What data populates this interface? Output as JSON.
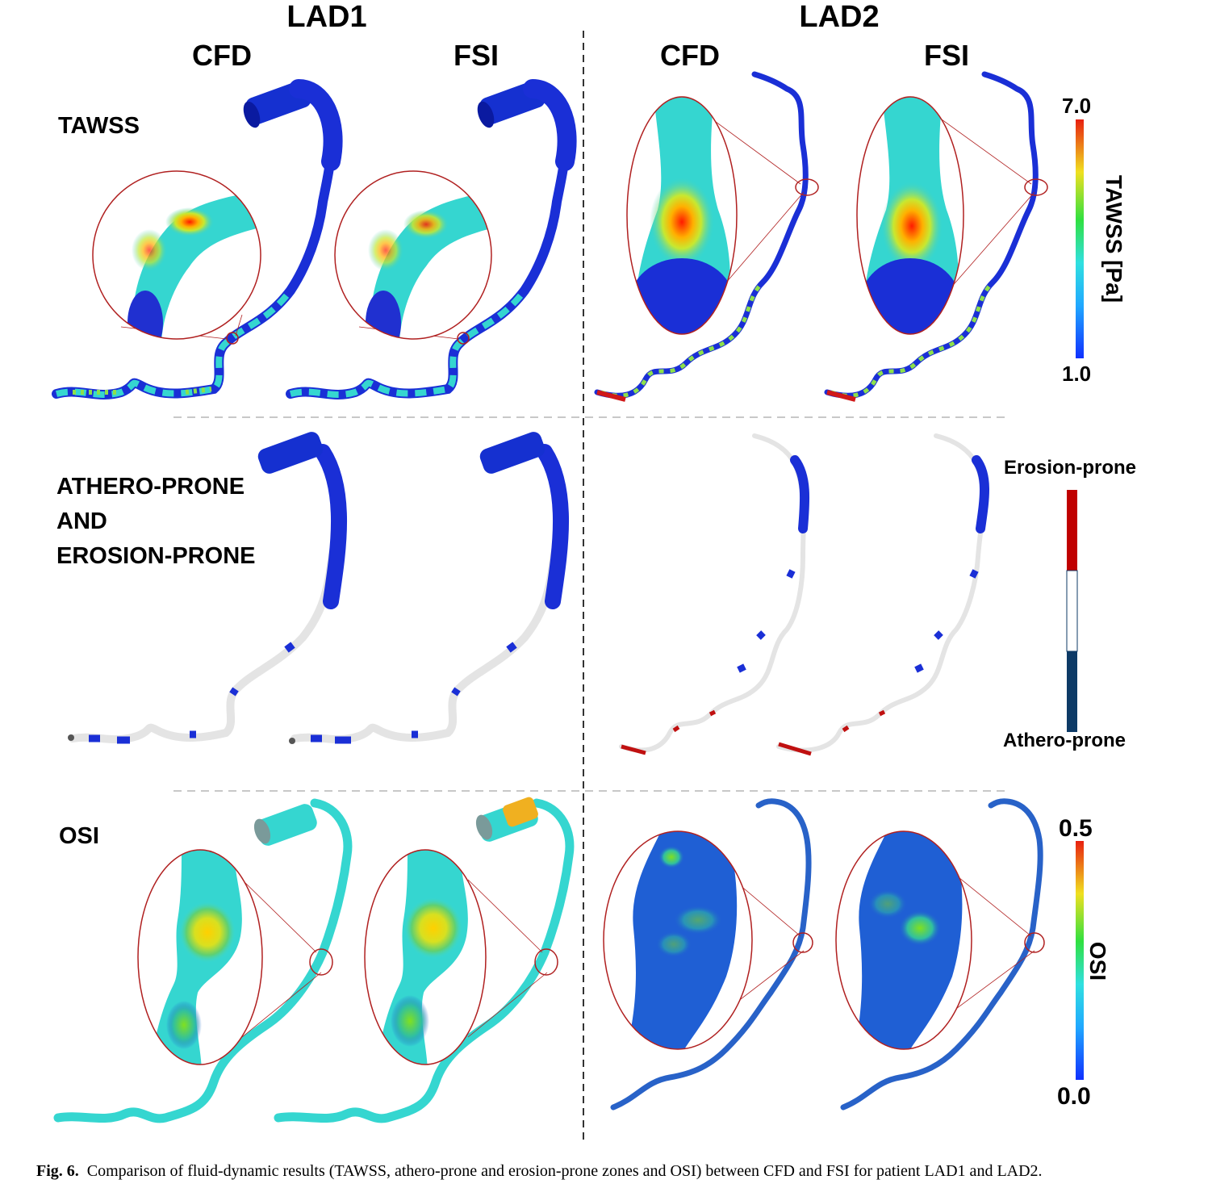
{
  "figure": {
    "patients": [
      {
        "label": "LAD1",
        "methods": [
          "CFD",
          "FSI"
        ]
      },
      {
        "label": "LAD2",
        "methods": [
          "CFD",
          "FSI"
        ]
      }
    ],
    "rows": [
      {
        "label_lines": [
          "TAWSS"
        ]
      },
      {
        "label_lines": [
          "ATHERO-PRONE",
          "AND",
          "EROSION-PRONE"
        ]
      },
      {
        "label_lines": [
          "OSI"
        ]
      }
    ],
    "colorbars": {
      "tawss": {
        "title": "TAWSS [Pa]",
        "max": "7.0",
        "min": "1.0"
      },
      "zones": {
        "top_label": "Erosion-prone",
        "bottom_label": "Athero-prone",
        "colors": {
          "erosion": "#c00000",
          "neutral": "#ffffff",
          "athero": "#0d3a66"
        }
      },
      "osi": {
        "title": "OSI",
        "max": "0.5",
        "min": "0.0"
      }
    },
    "caption": {
      "prefix": "Fig. 6.",
      "text": "Comparison of fluid-dynamic results (TAWSS, athero-prone and erosion-prone zones and OSI) between CFD and FSI for patient LAD1 and LAD2."
    },
    "colors": {
      "vessel_low": "#1a2fd6",
      "vessel_mid": "#35d6d0",
      "zoom_ring": "#b02020",
      "divider": "#000000",
      "grid": "#c8c8c8"
    }
  }
}
